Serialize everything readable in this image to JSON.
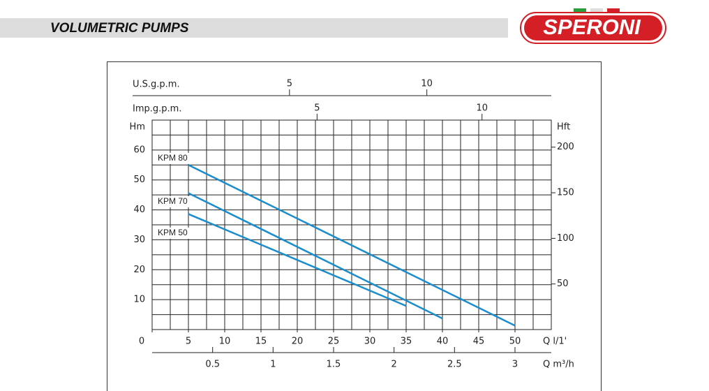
{
  "header": {
    "title": "VOLUMETRIC PUMPS",
    "logo": "SPERONI"
  },
  "chart_data": {
    "type": "line",
    "xlabel": "Q l/1'",
    "xlim": [
      0,
      55
    ],
    "xticks": [
      0,
      5,
      10,
      15,
      20,
      25,
      30,
      35,
      40,
      45,
      50
    ],
    "xgrid": [
      2.5,
      5,
      7.5,
      10,
      12.5,
      15,
      17.5,
      20,
      22.5,
      25,
      27.5,
      30,
      32.5,
      35,
      37.5,
      40,
      42.5,
      45,
      47.5,
      50,
      52.5
    ],
    "ylabel": "Hm",
    "ylim": [
      0,
      70
    ],
    "yticks": [
      10,
      20,
      30,
      40,
      50,
      60
    ],
    "ygrid": [
      5,
      10,
      15,
      20,
      25,
      30,
      35,
      40,
      45,
      50,
      55,
      60,
      65
    ],
    "y2label": "Hft",
    "y2lim": [
      0,
      229.66
    ],
    "y2ticks": [
      50,
      100,
      150,
      200
    ],
    "secondary_x_axes": [
      {
        "label": "Q m³/h",
        "xlim": [
          0,
          3.3
        ],
        "xticks": [
          0.5,
          1,
          1.5,
          2,
          2.5,
          3
        ],
        "position": "bottom"
      },
      {
        "label": "U.S.g.p.m.",
        "xlim": [
          0,
          14.53
        ],
        "xticks": [
          5,
          10
        ],
        "position": "top"
      },
      {
        "label": "Imp.g.p.m.",
        "xlim": [
          0,
          12.1
        ],
        "xticks": [
          5,
          10
        ],
        "position": "top"
      }
    ],
    "series": [
      {
        "name": "KPM 80",
        "color": "#1b8ccc",
        "x": [
          5,
          50
        ],
        "values": [
          55,
          1.3
        ]
      },
      {
        "name": "KPM 70",
        "color": "#1b8ccc",
        "x": [
          5,
          40
        ],
        "values": [
          45.6,
          3.7
        ]
      },
      {
        "name": "KPM 50",
        "color": "#1b8ccc",
        "x": [
          5,
          35
        ],
        "values": [
          38.6,
          7.9
        ]
      }
    ]
  }
}
